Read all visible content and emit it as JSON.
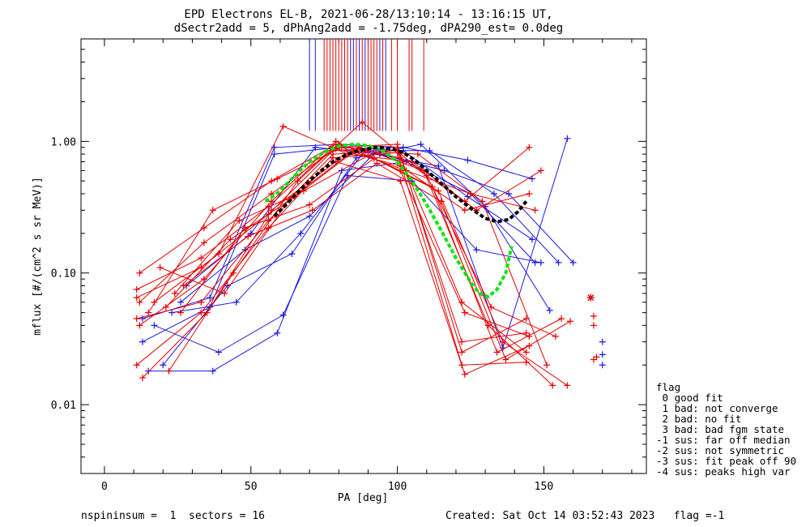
{
  "chart_data": {
    "type": "line",
    "title": "EPD Electrons EL-B, 2021-06-28/13:10:14 - 13:16:15 UT,",
    "subtitle": "dSectr2add = 5, dPhAng2add = -1.75deg, dPA290_est=   0.0deg",
    "xlabel": "PA [deg]",
    "ylabel": "mflux [#/(cm^2 s sr MeV)]",
    "xlim": [
      -8,
      185
    ],
    "ylim": [
      0.003,
      6.0
    ],
    "yscale": "log",
    "x_ticks": [
      0,
      50,
      100,
      150
    ],
    "x_tick_labels": [
      "0",
      "50",
      "100",
      "150"
    ],
    "y_ticks": [
      0.01,
      0.1,
      1.0
    ],
    "y_tick_labels": [
      "0.01",
      "0.10",
      "1.00"
    ],
    "grid": false,
    "colors": {
      "red": "#e60000",
      "blue": "#1a1ae6",
      "green": "#00e600",
      "black": "#000000"
    },
    "vertical_markers": {
      "y_range": [
        1.2,
        6.0
      ],
      "blue_x": [
        70,
        72,
        84,
        85,
        87,
        89,
        94,
        96
      ],
      "red_x": [
        75,
        76,
        77,
        78,
        79,
        80,
        81,
        82,
        83,
        86,
        88,
        90,
        91,
        92,
        93,
        95,
        98,
        100,
        104,
        105,
        109
      ]
    },
    "series": [
      {
        "color": "red",
        "x": [
          11,
          33,
          56,
          78,
          100,
          122,
          144
        ],
        "y": [
          0.075,
          0.13,
          0.32,
          0.9,
          0.95,
          0.025,
          0.045
        ]
      },
      {
        "color": "red",
        "x": [
          11,
          33,
          56,
          78,
          100,
          122,
          144
        ],
        "y": [
          0.065,
          0.11,
          0.28,
          0.85,
          0.9,
          0.03,
          0.035
        ]
      },
      {
        "color": "red",
        "x": [
          11,
          33,
          56,
          78,
          100,
          122,
          144
        ],
        "y": [
          0.045,
          0.06,
          0.25,
          0.8,
          0.85,
          0.06,
          0.025
        ]
      },
      {
        "color": "red",
        "x": [
          11,
          33,
          56,
          78,
          100,
          122,
          144
        ],
        "y": [
          0.02,
          0.05,
          0.22,
          0.75,
          0.82,
          0.02,
          0.021
        ]
      },
      {
        "color": "red",
        "x": [
          12,
          34,
          57,
          79,
          101,
          123,
          145
        ],
        "y": [
          0.1,
          0.22,
          0.5,
          0.95,
          0.75,
          0.35,
          0.9
        ]
      },
      {
        "color": "red",
        "x": [
          12,
          34,
          57,
          79,
          101,
          123,
          145
        ],
        "y": [
          0.06,
          0.17,
          0.4,
          0.88,
          0.65,
          0.3,
          0.4
        ]
      },
      {
        "color": "red",
        "x": [
          12,
          34,
          57,
          79,
          101,
          123,
          145
        ],
        "y": [
          0.04,
          0.09,
          0.35,
          1.0,
          0.6,
          0.05,
          0.033
        ]
      },
      {
        "color": "red",
        "x": [
          13,
          35,
          57,
          79,
          101,
          123,
          145
        ],
        "y": [
          0.016,
          0.05,
          0.3,
          0.7,
          0.5,
          0.017,
          0.028
        ]
      },
      {
        "color": "red",
        "x": [
          15,
          37,
          59,
          81,
          103,
          125,
          147
        ],
        "y": [
          0.05,
          0.3,
          0.52,
          0.9,
          0.6,
          0.4,
          0.3
        ]
      },
      {
        "color": "red",
        "x": [
          17,
          39,
          61,
          83,
          105,
          127,
          149
        ],
        "y": [
          0.06,
          0.14,
          1.3,
          0.8,
          0.7,
          0.3,
          0.6
        ]
      },
      {
        "color": "red",
        "x": [
          19,
          41,
          63,
          85,
          107,
          129,
          151
        ],
        "y": [
          0.11,
          0.07,
          0.36,
          0.85,
          0.8,
          0.35,
          0.02
        ]
      },
      {
        "color": "red",
        "x": [
          21,
          43,
          65,
          87,
          109,
          131,
          153
        ],
        "y": [
          0.055,
          0.18,
          0.38,
          0.9,
          0.6,
          0.04,
          0.014
        ]
      },
      {
        "color": "red",
        "x": [
          22,
          44,
          66,
          88,
          110,
          132,
          154
        ],
        "y": [
          0.018,
          0.1,
          0.5,
          1.4,
          0.55,
          0.055,
          0.033
        ]
      },
      {
        "color": "red",
        "x": [
          24,
          46,
          68,
          90,
          112,
          134,
          156
        ],
        "y": [
          0.07,
          0.25,
          0.42,
          0.78,
          0.45,
          0.025,
          0.045
        ]
      },
      {
        "color": "red",
        "x": [
          26,
          48,
          70,
          92,
          114,
          136,
          158
        ],
        "y": [
          0.05,
          0.22,
          0.33,
          0.74,
          0.42,
          0.03,
          0.014
        ]
      },
      {
        "color": "red",
        "x": [
          27,
          49,
          71,
          93,
          115,
          137,
          159
        ],
        "y": [
          0.08,
          0.19,
          0.3,
          0.68,
          0.35,
          0.022,
          0.043
        ]
      },
      {
        "color": "blue",
        "x": [
          13,
          36,
          58,
          80,
          102,
          124,
          146
        ],
        "y": [
          0.045,
          0.065,
          0.9,
          0.95,
          0.9,
          0.72,
          0.52
        ]
      },
      {
        "color": "blue",
        "x": [
          13,
          36,
          58,
          80,
          102,
          124,
          146
        ],
        "y": [
          0.03,
          0.055,
          0.8,
          0.9,
          0.85,
          0.38,
          0.18
        ]
      },
      {
        "color": "blue",
        "x": [
          15,
          37,
          59,
          81,
          103,
          125,
          147
        ],
        "y": [
          0.018,
          0.018,
          0.035,
          0.6,
          0.7,
          0.4,
          0.12
        ]
      },
      {
        "color": "blue",
        "x": [
          17,
          39,
          61,
          83,
          105,
          127,
          149
        ],
        "y": [
          0.04,
          0.025,
          0.048,
          0.55,
          0.5,
          0.15,
          0.12
        ]
      },
      {
        "color": "blue",
        "x": [
          20,
          42,
          64,
          86,
          108,
          130,
          152
        ],
        "y": [
          0.02,
          0.08,
          0.14,
          0.75,
          0.95,
          0.32,
          0.052
        ]
      },
      {
        "color": "blue",
        "x": [
          23,
          45,
          67,
          89,
          111,
          133,
          155
        ],
        "y": [
          0.05,
          0.06,
          0.2,
          0.85,
          0.85,
          0.4,
          0.12
        ]
      },
      {
        "color": "blue",
        "x": [
          26,
          48,
          70,
          92,
          114,
          136,
          158
        ],
        "y": [
          0.06,
          0.15,
          0.27,
          0.8,
          0.65,
          0.027,
          1.05
        ]
      },
      {
        "color": "blue",
        "x": [
          28,
          50,
          72,
          94,
          116,
          138,
          160
        ],
        "y": [
          0.08,
          0.2,
          0.9,
          0.8,
          0.6,
          0.4,
          0.12
        ]
      }
    ],
    "fit_curves": [
      {
        "color": "green",
        "style": "dashed",
        "x": [
          55,
          60,
          65,
          70,
          75,
          80,
          85,
          90,
          95,
          100,
          105,
          110,
          115,
          120,
          125,
          128,
          131,
          134,
          137,
          139
        ],
        "y": [
          0.35,
          0.42,
          0.55,
          0.7,
          0.83,
          0.92,
          0.95,
          0.93,
          0.85,
          0.7,
          0.5,
          0.33,
          0.21,
          0.13,
          0.085,
          0.07,
          0.066,
          0.075,
          0.1,
          0.16
        ]
      },
      {
        "color": "black",
        "style": "dashed",
        "x": [
          58,
          62,
          66,
          70,
          74,
          78,
          82,
          86,
          90,
          94,
          98,
          102,
          106,
          110,
          115,
          120,
          125,
          130,
          134,
          138,
          141,
          144
        ],
        "y": [
          0.27,
          0.33,
          0.41,
          0.5,
          0.6,
          0.7,
          0.78,
          0.84,
          0.88,
          0.9,
          0.88,
          0.82,
          0.72,
          0.6,
          0.48,
          0.38,
          0.31,
          0.26,
          0.245,
          0.255,
          0.29,
          0.35
        ]
      }
    ],
    "outliers": [
      {
        "x": 166,
        "y": 0.065,
        "color": "red",
        "marker": "asterisk"
      },
      {
        "x": 167,
        "y": 0.047,
        "color": "red",
        "marker": "plus"
      },
      {
        "x": 167,
        "y": 0.04,
        "color": "red",
        "marker": "plus"
      },
      {
        "x": 167,
        "y": 0.022,
        "color": "red",
        "marker": "plus"
      },
      {
        "x": 168,
        "y": 0.023,
        "color": "red",
        "marker": "plus"
      },
      {
        "x": 170,
        "y": 0.03,
        "color": "blue",
        "marker": "plus"
      },
      {
        "x": 170,
        "y": 0.024,
        "color": "blue",
        "marker": "plus"
      },
      {
        "x": 170,
        "y": 0.02,
        "color": "blue",
        "marker": "plus"
      }
    ]
  },
  "legend": {
    "title": "flag",
    "items": [
      " 0 good fit",
      " 1 bad: not converge",
      " 2 bad: no fit",
      " 3 bad: bad fgm state",
      "-1 sus: far off median",
      "-2 sus: not symmetric",
      "-3 sus: fit peak off 90",
      "-4 sus: peaks high var"
    ]
  },
  "footer": {
    "left": "nspininsum =  1  sectors = 16",
    "right": "Created: Sat Oct 14 03:52:43 2023   flag =-1"
  }
}
